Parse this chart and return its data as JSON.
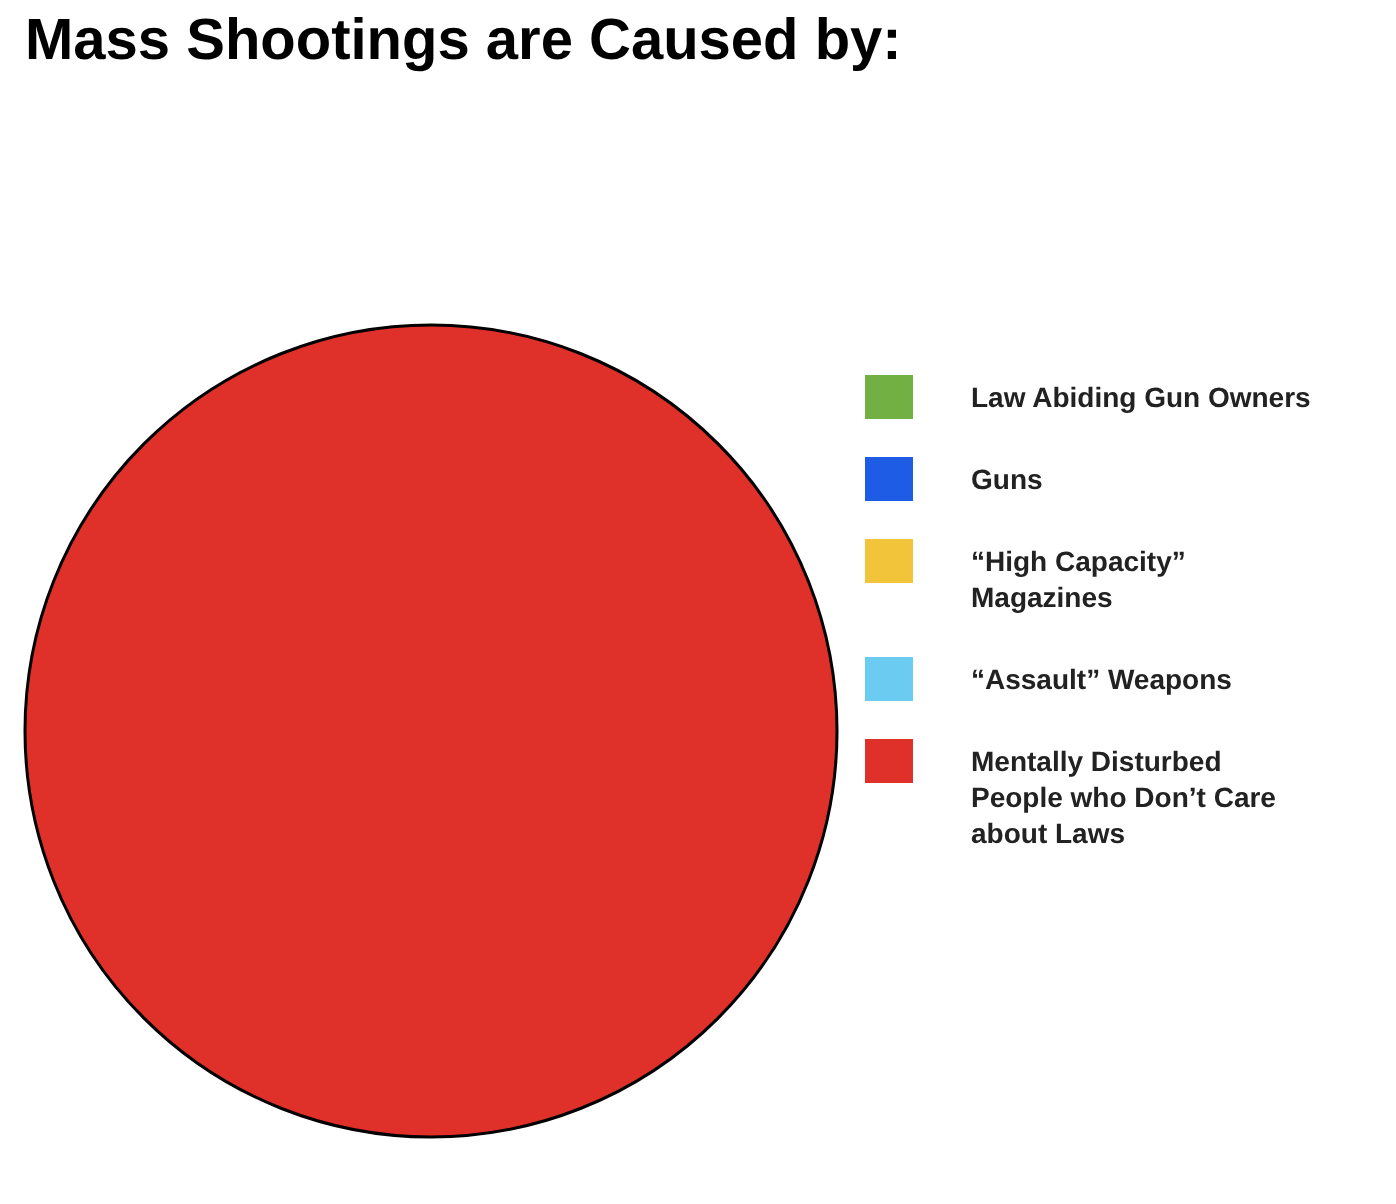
{
  "chart_data": {
    "type": "pie",
    "title": "Mass Shootings are Caused by:",
    "categories": [
      "Law Abiding Gun Owners",
      "Guns",
      "“High Capacity” Magazines",
      "“Assault” Weapons",
      "Mentally Disturbed People who Don’t Care about Laws"
    ],
    "values": [
      0,
      0,
      0,
      0,
      100
    ],
    "colors": [
      "#72b043",
      "#1f5ce6",
      "#f2c43a",
      "#6ccbf0",
      "#e0302a"
    ],
    "legend": "right"
  }
}
